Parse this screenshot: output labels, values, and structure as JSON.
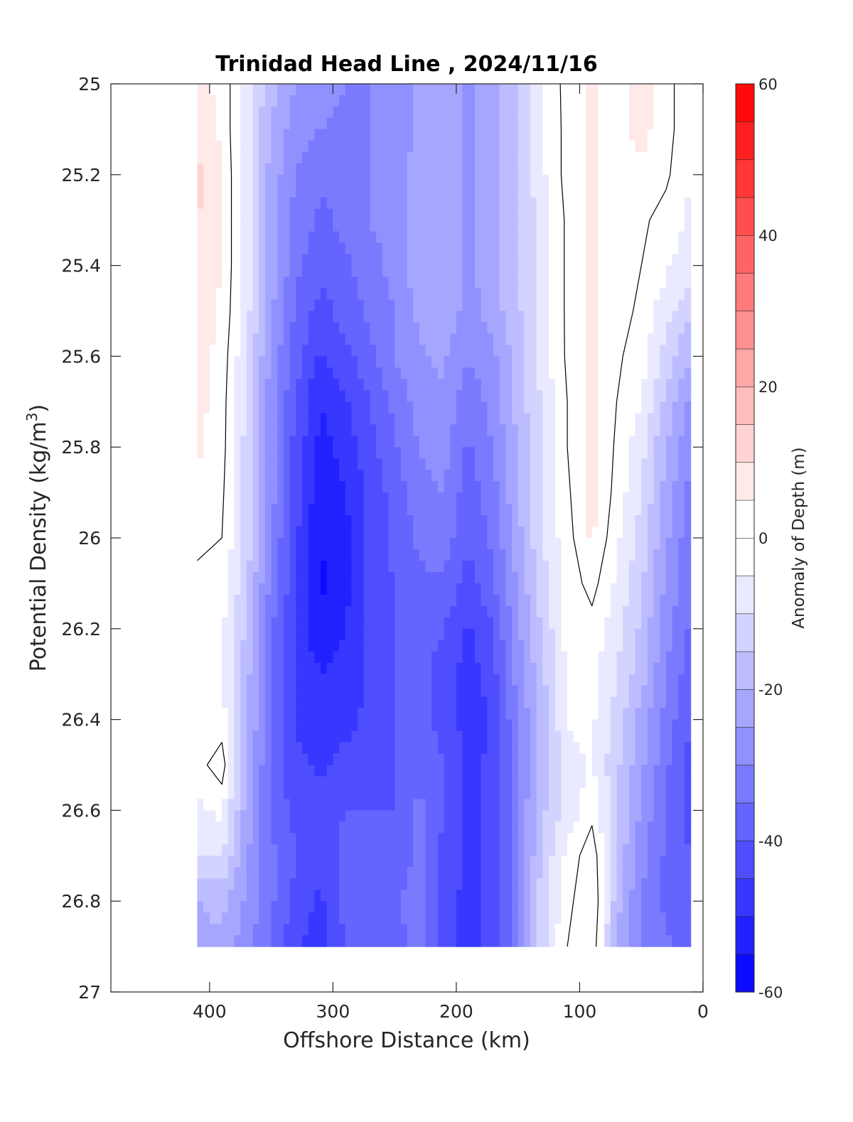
{
  "chart_data": {
    "type": "heatmap",
    "subtype": "filled-contour",
    "title": "Trinidad Head Line , 2024/11/16",
    "xlabel": "Offshore Distance (km)",
    "ylabel_prefix": "Potential Density (kg/m",
    "ylabel_sup": "3",
    "ylabel_suffix": ")",
    "colorbar_label": "Anomaly of Depth (m)",
    "xlim": [
      480,
      0
    ],
    "x_reversed": true,
    "ylim": [
      25,
      27
    ],
    "y_reversed": true,
    "xticks": [
      400,
      300,
      200,
      100,
      0
    ],
    "yticks": [
      "25",
      "25.2",
      "25.4",
      "25.6",
      "25.8",
      "26",
      "26.2",
      "26.4",
      "26.6",
      "26.8",
      "27"
    ],
    "colorbar": {
      "min": -60,
      "max": 60,
      "step": 5,
      "ticks": [
        -60,
        -40,
        -20,
        0,
        20,
        40,
        60
      ],
      "negative_color": "#0000ff",
      "positive_color": "#ff0000",
      "neutral_color": "#ffffff"
    },
    "data_extent": {
      "x": [
        410,
        10
      ],
      "y": [
        25,
        26.9
      ]
    },
    "columns_km": [
      410,
      390,
      370,
      350,
      330,
      310,
      290,
      270,
      250,
      230,
      210,
      190,
      170,
      150,
      130,
      110,
      90,
      70,
      50,
      30,
      10
    ],
    "density_levels": [
      25.0,
      25.1,
      25.2,
      25.3,
      25.4,
      25.5,
      25.6,
      25.7,
      25.8,
      25.9,
      26.0,
      26.1,
      26.2,
      26.3,
      26.4,
      26.5,
      26.6,
      26.7,
      26.8,
      26.9
    ],
    "anomaly_m": [
      [
        6,
        4,
        -8,
        -18,
        -25,
        -28,
        -30,
        -30,
        -28,
        -24,
        -22,
        -26,
        -22,
        -15,
        -5,
        2,
        6,
        3,
        8,
        2,
        -4
      ],
      [
        8,
        4,
        -8,
        -20,
        -28,
        -30,
        -32,
        -30,
        -28,
        -24,
        -22,
        -26,
        -22,
        -15,
        -6,
        2,
        6,
        3,
        7,
        2,
        -4
      ],
      [
        12,
        5,
        -8,
        -22,
        -30,
        -34,
        -33,
        -30,
        -28,
        -22,
        -22,
        -26,
        -22,
        -16,
        -6,
        2,
        6,
        2,
        3,
        1,
        -5
      ],
      [
        10,
        5,
        -8,
        -22,
        -32,
        -36,
        -34,
        -30,
        -28,
        -22,
        -22,
        -26,
        -22,
        -16,
        -7,
        1,
        6,
        2,
        1,
        -2,
        -6
      ],
      [
        8,
        5,
        -8,
        -22,
        -34,
        -38,
        -36,
        -32,
        -28,
        -22,
        -22,
        -26,
        -22,
        -16,
        -7,
        1,
        6,
        2,
        0,
        -4,
        -8
      ],
      [
        8,
        4,
        -8,
        -24,
        -36,
        -42,
        -38,
        -34,
        -30,
        -24,
        -20,
        -28,
        -22,
        -16,
        -7,
        1,
        6,
        2,
        -1,
        -8,
        -14
      ],
      [
        8,
        3,
        -10,
        -26,
        -38,
        -46,
        -42,
        -36,
        -30,
        -26,
        -24,
        -30,
        -26,
        -18,
        -8,
        1,
        7,
        1,
        -3,
        -12,
        -20
      ],
      [
        7,
        2,
        -10,
        -28,
        -40,
        -50,
        -46,
        -40,
        -34,
        -28,
        -26,
        -34,
        -28,
        -18,
        -9,
        0,
        7,
        0,
        -5,
        -16,
        -26
      ],
      [
        6,
        2,
        -12,
        -28,
        -42,
        -52,
        -48,
        -42,
        -36,
        -30,
        -28,
        -36,
        -30,
        -20,
        -10,
        0,
        7,
        -1,
        -8,
        -20,
        -30
      ],
      [
        4,
        1,
        -12,
        -28,
        -42,
        -54,
        -50,
        -44,
        -38,
        -32,
        -30,
        -38,
        -32,
        -20,
        -10,
        -1,
        7,
        -2,
        -10,
        -22,
        -32
      ],
      [
        2,
        0,
        -12,
        -30,
        -44,
        -55,
        -52,
        -44,
        -38,
        -34,
        -32,
        -40,
        -34,
        -22,
        -10,
        -2,
        6,
        -4,
        -12,
        -24,
        -34
      ],
      [
        -2,
        -2,
        -14,
        -32,
        -44,
        -56,
        -52,
        -44,
        -40,
        -36,
        -36,
        -42,
        -36,
        -24,
        -12,
        -3,
        2,
        -6,
        -14,
        -26,
        -34
      ],
      [
        -4,
        -4,
        -16,
        -34,
        -46,
        -54,
        -50,
        -44,
        -40,
        -38,
        -40,
        -46,
        -40,
        -26,
        -14,
        -3,
        -2,
        -8,
        -16,
        -28,
        -36
      ],
      [
        -4,
        -4,
        -18,
        -36,
        -46,
        -50,
        -48,
        -44,
        -40,
        -38,
        -42,
        -48,
        -42,
        -28,
        -16,
        -4,
        -4,
        -10,
        -18,
        -30,
        -38
      ],
      [
        -3,
        -3,
        -18,
        -36,
        -46,
        -48,
        -46,
        -44,
        -40,
        -38,
        -42,
        -48,
        -44,
        -30,
        -18,
        -4,
        -4,
        -12,
        -22,
        -32,
        -40
      ],
      [
        -2,
        3,
        -20,
        -36,
        -44,
        -46,
        -44,
        -44,
        -40,
        -36,
        -40,
        -46,
        -44,
        -30,
        -18,
        -8,
        -4,
        -14,
        -24,
        -34,
        -42
      ],
      [
        -6,
        -4,
        -22,
        -36,
        -42,
        -44,
        -40,
        -40,
        -40,
        -34,
        -40,
        -46,
        -44,
        -30,
        -16,
        -8,
        -2,
        -14,
        -26,
        -36,
        -42
      ],
      [
        -10,
        -10,
        -24,
        -34,
        -40,
        -44,
        -38,
        -40,
        -38,
        -34,
        -42,
        -46,
        -44,
        -30,
        -14,
        -4,
        4,
        -16,
        -28,
        -36,
        -40
      ],
      [
        -20,
        -18,
        -26,
        -34,
        -42,
        -46,
        -38,
        -40,
        -36,
        -32,
        -44,
        -46,
        -44,
        -30,
        -12,
        -2,
        6,
        -18,
        -30,
        -36,
        -40
      ],
      [
        -22,
        -22,
        -28,
        -36,
        -44,
        -48,
        -40,
        -40,
        -38,
        -32,
        -44,
        -46,
        -44,
        -30,
        -12,
        0,
        4,
        -20,
        -30,
        -34,
        -38
      ]
    ]
  }
}
